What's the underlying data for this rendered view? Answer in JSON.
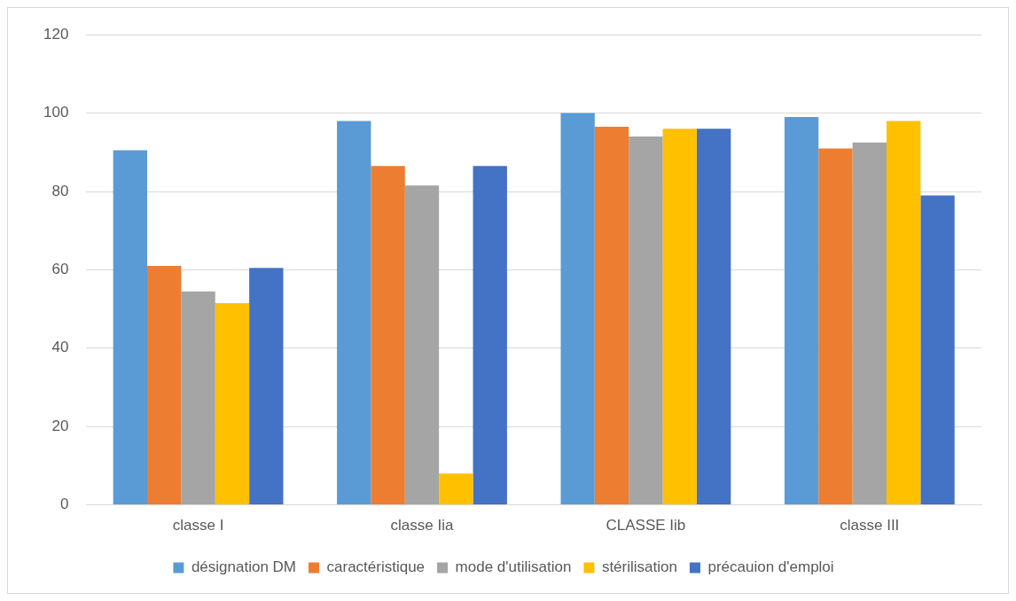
{
  "chart_data": {
    "type": "bar",
    "categories": [
      "classe I",
      "classe Iia",
      "CLASSE Iib",
      "classe III"
    ],
    "series": [
      {
        "name": "désignation DM",
        "color": "#5b9bd5",
        "values": [
          90.5,
          98,
          100,
          99
        ]
      },
      {
        "name": "caractéristique",
        "color": "#ed7d31",
        "values": [
          61,
          86.5,
          96.5,
          91
        ]
      },
      {
        "name": "mode d'utilisation",
        "color": "#a5a5a5",
        "values": [
          54.5,
          81.5,
          94,
          92.5
        ]
      },
      {
        "name": "stérilisation",
        "color": "#ffc000",
        "values": [
          51.5,
          8,
          96,
          98
        ]
      },
      {
        "name": "précauion d'emploi",
        "color": "#4472c4",
        "values": [
          60.5,
          86.5,
          96,
          79
        ]
      }
    ],
    "ylim": [
      0,
      120
    ],
    "yticks": [
      0,
      20,
      40,
      60,
      80,
      100,
      120
    ],
    "grid": "y",
    "legend": "bottom"
  }
}
